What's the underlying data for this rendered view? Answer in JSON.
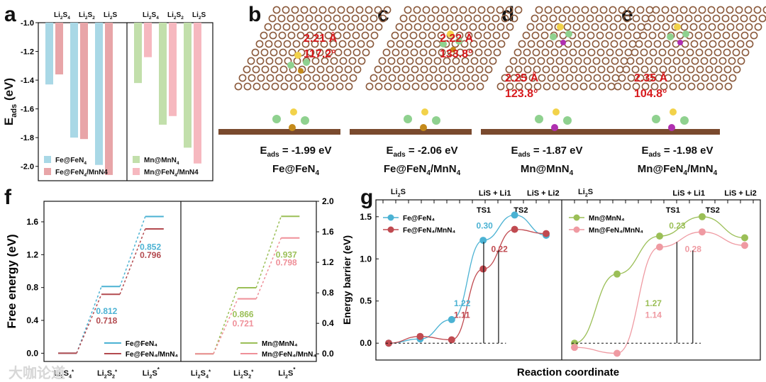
{
  "panels": {
    "a": "a",
    "b": "b",
    "c": "c",
    "d": "d",
    "e": "e",
    "f": "f",
    "g": "g"
  },
  "structures": [
    {
      "id": "b",
      "bond": "2.21 Å",
      "angle": "117.2°",
      "eads": "E",
      "eads_sub": "ads",
      "eads_val": " = -1.99 eV",
      "label": "Fe@FeN",
      "label_sub": "4",
      "label_tail": ""
    },
    {
      "id": "c",
      "bond": "2.22 Å",
      "angle": "133.8°",
      "eads": "E",
      "eads_sub": "ads",
      "eads_val": " = -2.06 eV",
      "label": "Fe@FeN",
      "label_sub": "4",
      "label_tail": "/MnN",
      "label_sub2": "4"
    },
    {
      "id": "d",
      "bond": "2.25 Å",
      "angle": "123.8°",
      "eads": "E",
      "eads_sub": "ads",
      "eads_val": " = -1.87 eV",
      "label": "Mn@MnN",
      "label_sub": "4",
      "label_tail": ""
    },
    {
      "id": "e",
      "bond": "2.35 Å",
      "angle": "104.8°",
      "eads": "E",
      "eads_sub": "ads",
      "eads_val": " = -1.98 eV",
      "label": "Mn@FeN",
      "label_sub": "4",
      "label_tail": "/MnN",
      "label_sub2": "4"
    }
  ],
  "watermark": "大咖论道",
  "chart_data": [
    {
      "id": "a",
      "type": "bar",
      "ylabel": "E",
      "ylabel_sub": "ads",
      "ylabel_unit": " (eV)",
      "ylim": [
        -2.1,
        -1.0
      ],
      "yticks": [
        "-1.0",
        "-1.2",
        "-1.4",
        "-1.6",
        "-1.8",
        "-2.0"
      ],
      "categories": [
        "Li2S4",
        "Li2S2",
        "Li2S"
      ],
      "category_labels": [
        [
          "Li",
          "2",
          "S",
          "4"
        ],
        [
          "Li",
          "2",
          "S",
          "2"
        ],
        [
          "Li",
          "2",
          "S",
          ""
        ]
      ],
      "groups": [
        {
          "series": [
            {
              "name": "Fe@FeN4",
              "legend": [
                "Fe@FeN",
                "4",
                ""
              ],
              "color": "#a9d8e6",
              "values": [
                -1.43,
                -1.8,
                -1.99
              ]
            },
            {
              "name": "Fe@FeN4/MnN4",
              "legend": [
                "Fe@FeN",
                "4",
                "/MnN4"
              ],
              "color": "#e8a5a8",
              "values": [
                -1.36,
                -1.81,
                -2.06
              ]
            }
          ]
        },
        {
          "series": [
            {
              "name": "Mn@MnN4",
              "legend": [
                "Mn@MnN",
                "4",
                ""
              ],
              "color": "#c2dfab",
              "values": [
                -1.42,
                -1.71,
                -1.87
              ]
            },
            {
              "name": "Mn@FeN4/MnN4",
              "legend": [
                "Mn@FeN",
                "4",
                "/MnN4"
              ],
              "color": "#f6b8bf",
              "values": [
                -1.24,
                -1.65,
                -1.98
              ]
            }
          ]
        }
      ]
    },
    {
      "id": "f",
      "type": "line",
      "ylabel": "Free energy (eV)",
      "left": {
        "ylim": [
          -0.1,
          1.85
        ],
        "yticks": [
          "0.0",
          "0.4",
          "0.8",
          "1.2",
          "1.6"
        ],
        "xlabels": [
          "Li2S4*",
          "Li2S2*",
          "Li2S*"
        ],
        "series": [
          {
            "name": "Fe@FeN4",
            "color": "#4bb2d3",
            "levels": [
              0.0,
              0.812,
              1.664
            ]
          },
          {
            "name": "Fe@FeN4/MnN4",
            "color": "#b34a4f",
            "levels": [
              0.0,
              0.718,
              1.514
            ]
          }
        ],
        "labels": [
          "0.852",
          "0.796",
          "0.812",
          "0.718"
        ]
      },
      "right": {
        "ylim": [
          -0.1,
          2.0
        ],
        "yticks": [
          "0.0",
          "0.4",
          "0.8",
          "1.2",
          "1.6",
          "2.0"
        ],
        "xlabels": [
          "Li2S4*",
          "Li2S2*",
          "Li2S*"
        ],
        "series": [
          {
            "name": "Mn@MnN4",
            "color": "#9bbf57",
            "levels": [
              0.0,
              0.866,
              1.803
            ]
          },
          {
            "name": "Mn@FeN4/MnN4",
            "color": "#ef8f98",
            "levels": [
              0.0,
              0.721,
              1.519
            ]
          }
        ],
        "labels": [
          "0.937",
          "0.798",
          "0.866",
          "0.721"
        ]
      }
    },
    {
      "id": "g",
      "type": "line",
      "ylabel": "Energy barrier (eV)",
      "xlabel": "Reaction coordinate",
      "ylim": [
        -0.2,
        1.7
      ],
      "yticks": [
        "0.0",
        "0.5",
        "1.0",
        "1.5"
      ],
      "top_labels": [
        "Li2S",
        "TS1",
        "LiS + Li1",
        "TS2",
        "LiS + Li2"
      ],
      "left": {
        "series": [
          {
            "name": "Fe@FeN4",
            "color": "#4bb2d3",
            "points": [
              0.0,
              0.05,
              0.28,
              1.22,
              1.52,
              1.28
            ]
          },
          {
            "name": "Fe@FeN4/MnN4",
            "color": "#c04a50",
            "points": [
              0.0,
              0.08,
              0.04,
              0.88,
              1.35,
              1.3
            ]
          }
        ],
        "annotations": [
          "0.30",
          "0.22",
          "1.22",
          "1.11"
        ]
      },
      "right": {
        "series": [
          {
            "name": "Mn@MnN4",
            "color": "#9bbf57",
            "points": [
              0.0,
              0.82,
              1.27,
              1.5,
              1.25
            ]
          },
          {
            "name": "Mn@FeN4/MnN4",
            "color": "#ef9aa2",
            "points": [
              -0.05,
              -0.12,
              1.14,
              1.32,
              1.16
            ]
          }
        ],
        "annotations": [
          "0.23",
          "0.28",
          "1.27",
          "1.14"
        ]
      }
    }
  ]
}
